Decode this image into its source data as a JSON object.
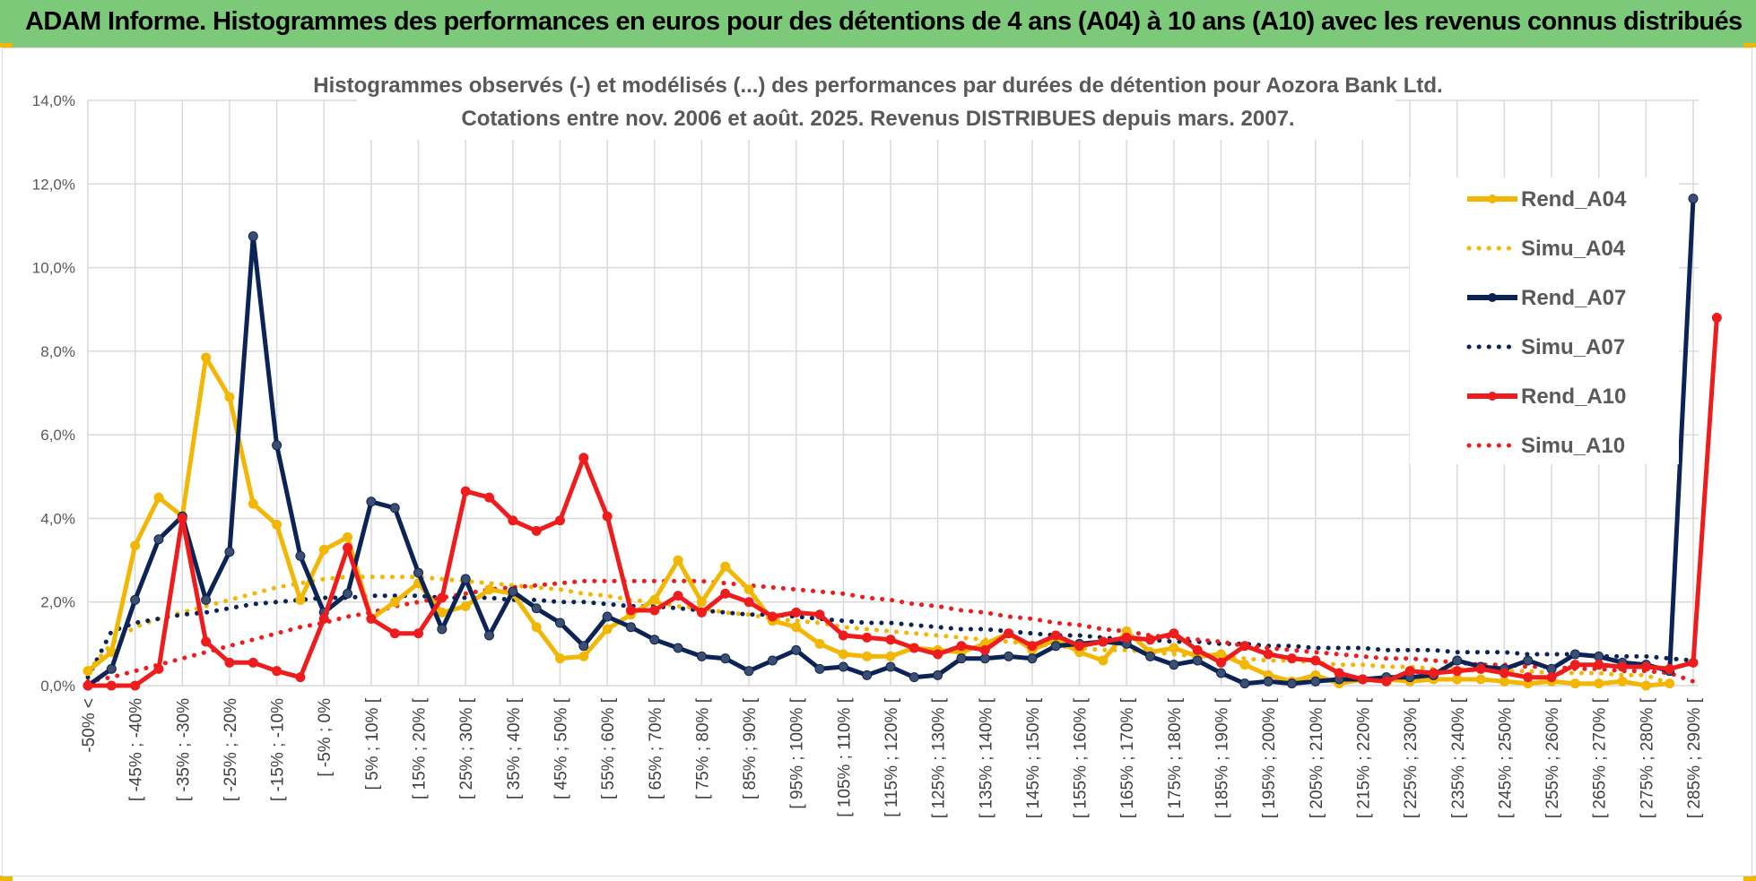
{
  "header": {
    "title": "ADAM Informe. Histogrammes des performances en euros pour des détentions de 4 ans (A04) à 10 ans (A10) avec les revenus connus distribués"
  },
  "colors": {
    "banner": "#7dc97a",
    "accent": "#f2b705"
  },
  "chart_data": {
    "type": "line",
    "title": "Histogrammes observés (-) et modélisés (...) des performances par durées de détention pour Aozora Bank Ltd.",
    "subtitle": "Cotations entre nov. 2006 et août. 2025. Revenus DISTRIBUES depuis mars. 2007.",
    "ylim": [
      0,
      14
    ],
    "yticks": [
      "0,0%",
      "2,0%",
      "4,0%",
      "6,0%",
      "8,0%",
      "10,0%",
      "12,0%",
      "14,0%"
    ],
    "grid": true,
    "legend_position": "right",
    "x_labels": [
      "-50% <",
      "[ -45% ; -40%",
      "[ -35% ; -30%",
      "[ -25% ; -20%",
      "[ -15% ; -10%",
      "[ -5% ; 0%",
      "[ 5% ; 10% [",
      "[ 15% ; 20% [",
      "[ 25% ; 30% [",
      "[ 35% ; 40% [",
      "[ 45% ; 50% [",
      "[ 55% ; 60% [",
      "[ 65% ; 70% [",
      "[ 75% ; 80% [",
      "[ 85% ; 90% [",
      "[ 95% ; 100% [",
      "[ 105% ; 110% [",
      "[ 115% ; 120% [",
      "[ 125% ; 130% [",
      "[ 135% ; 140% [",
      "[ 145% ; 150% [",
      "[ 155% ; 160% [",
      "[ 165% ; 170% [",
      "[ 175% ; 180% [",
      "[ 185% ; 190% [",
      "[ 195% ; 200% [",
      "[ 205% ; 210% [",
      "[ 215% ; 220% [",
      "[ 225% ; 230% [",
      "[ 235% ; 240% [",
      "[ 245% ; 250% [",
      "[ 255% ; 260% [",
      "[ 265% ; 270% [",
      "[ 275% ; 280% [",
      "[ 285% ; 290% ["
    ],
    "series": [
      {
        "name": "Rend_A04",
        "style": "solid",
        "color": "#f2b705",
        "values": [
          0.35,
          0.8,
          3.35,
          4.5,
          4.05,
          7.85,
          6.9,
          4.35,
          3.85,
          2.05,
          3.25,
          3.55,
          1.6,
          2.0,
          2.45,
          1.75,
          1.9,
          2.3,
          2.2,
          1.4,
          0.65,
          0.7,
          1.35,
          1.7,
          2.05,
          3.0,
          2.0,
          2.85,
          2.3,
          1.55,
          1.4,
          1.0,
          0.75,
          0.7,
          0.7,
          0.9,
          0.85,
          0.8,
          1.0,
          1.25,
          0.85,
          1.1,
          0.8,
          0.6,
          1.3,
          0.8,
          0.9,
          0.7,
          0.75,
          0.5,
          0.25,
          0.1,
          0.25,
          0.05,
          0.15,
          0.15,
          0.1,
          0.15,
          0.15,
          0.15,
          0.1,
          0.05,
          0.1,
          0.05,
          0.05,
          0.1,
          0.0,
          0.05
        ]
      },
      {
        "name": "Simu_A04",
        "style": "dotted",
        "color": "#f2b705",
        "values": [
          0.35,
          1.0,
          1.4,
          1.6,
          1.75,
          1.9,
          2.05,
          2.2,
          2.35,
          2.45,
          2.55,
          2.6,
          2.6,
          2.6,
          2.6,
          2.55,
          2.5,
          2.45,
          2.4,
          2.35,
          2.3,
          2.2,
          2.15,
          2.05,
          2.0,
          1.9,
          1.85,
          1.75,
          1.7,
          1.6,
          1.55,
          1.5,
          1.4,
          1.35,
          1.3,
          1.25,
          1.2,
          1.15,
          1.1,
          1.05,
          1.0,
          0.95,
          0.9,
          0.85,
          0.85,
          0.8,
          0.75,
          0.7,
          0.7,
          0.65,
          0.6,
          0.6,
          0.55,
          0.5,
          0.5,
          0.45,
          0.45,
          0.4,
          0.4,
          0.35,
          0.35,
          0.35,
          0.3,
          0.3,
          0.3,
          0.25,
          0.25,
          0.05
        ]
      },
      {
        "name": "Rend_A07",
        "style": "solid",
        "color": "#0c2356",
        "values": [
          0.0,
          0.4,
          2.05,
          3.5,
          4.05,
          2.05,
          3.2,
          10.75,
          5.75,
          3.1,
          1.75,
          2.2,
          4.4,
          4.25,
          2.7,
          1.35,
          2.55,
          1.2,
          2.25,
          1.85,
          1.5,
          0.95,
          1.65,
          1.4,
          1.1,
          0.9,
          0.7,
          0.65,
          0.35,
          0.6,
          0.85,
          0.4,
          0.45,
          0.25,
          0.45,
          0.2,
          0.25,
          0.65,
          0.65,
          0.7,
          0.65,
          0.95,
          1.0,
          1.05,
          1.0,
          0.7,
          0.5,
          0.6,
          0.3,
          0.05,
          0.1,
          0.05,
          0.1,
          0.15,
          0.15,
          0.2,
          0.2,
          0.25,
          0.6,
          0.45,
          0.4,
          0.6,
          0.4,
          0.75,
          0.7,
          0.55,
          0.5,
          0.35,
          11.65
        ]
      },
      {
        "name": "Simu_A07",
        "style": "dotted",
        "color": "#0c2356",
        "values": [
          0.2,
          1.3,
          1.5,
          1.6,
          1.7,
          1.75,
          1.85,
          1.95,
          2.0,
          2.05,
          2.1,
          2.1,
          2.15,
          2.15,
          2.15,
          2.1,
          2.1,
          2.1,
          2.05,
          2.05,
          2.0,
          2.0,
          1.95,
          1.9,
          1.9,
          1.85,
          1.8,
          1.75,
          1.7,
          1.7,
          1.65,
          1.6,
          1.55,
          1.5,
          1.5,
          1.45,
          1.4,
          1.35,
          1.35,
          1.3,
          1.25,
          1.2,
          1.2,
          1.15,
          1.1,
          1.1,
          1.05,
          1.05,
          1.0,
          1.0,
          0.95,
          0.95,
          0.9,
          0.9,
          0.9,
          0.85,
          0.85,
          0.85,
          0.8,
          0.8,
          0.8,
          0.75,
          0.75,
          0.75,
          0.7,
          0.7,
          0.7,
          0.65,
          0.6
        ]
      },
      {
        "name": "Rend_A10",
        "style": "solid",
        "color": "#ee1c1c",
        "values": [
          0.0,
          0.0,
          0.0,
          0.4,
          4.0,
          1.05,
          0.55,
          0.55,
          0.35,
          0.2,
          1.6,
          3.3,
          1.6,
          1.25,
          1.25,
          2.1,
          4.65,
          4.5,
          3.95,
          3.7,
          3.95,
          5.45,
          4.05,
          1.8,
          1.8,
          2.15,
          1.75,
          2.2,
          2.0,
          1.65,
          1.75,
          1.7,
          1.2,
          1.15,
          1.1,
          0.9,
          0.75,
          0.95,
          0.85,
          1.25,
          0.95,
          1.2,
          0.95,
          1.05,
          1.15,
          1.1,
          1.25,
          0.85,
          0.55,
          0.95,
          0.75,
          0.65,
          0.6,
          0.3,
          0.15,
          0.1,
          0.35,
          0.3,
          0.35,
          0.4,
          0.3,
          0.2,
          0.2,
          0.5,
          0.5,
          0.45,
          0.45,
          0.4,
          0.55,
          8.8
        ]
      },
      {
        "name": "Simu_A10",
        "style": "dotted",
        "color": "#ee1c1c",
        "values": [
          0.1,
          0.2,
          0.35,
          0.5,
          0.65,
          0.8,
          0.95,
          1.1,
          1.25,
          1.4,
          1.5,
          1.65,
          1.75,
          1.9,
          2.0,
          2.1,
          2.2,
          2.3,
          2.35,
          2.4,
          2.45,
          2.5,
          2.5,
          2.5,
          2.5,
          2.5,
          2.5,
          2.45,
          2.4,
          2.35,
          2.3,
          2.25,
          2.2,
          2.1,
          2.05,
          1.95,
          1.9,
          1.8,
          1.75,
          1.65,
          1.6,
          1.5,
          1.45,
          1.35,
          1.3,
          1.2,
          1.15,
          1.1,
          1.05,
          0.95,
          0.9,
          0.85,
          0.8,
          0.75,
          0.7,
          0.65,
          0.65,
          0.6,
          0.55,
          0.5,
          0.5,
          0.45,
          0.45,
          0.4,
          0.4,
          0.35,
          0.35,
          0.3,
          0.1
        ]
      }
    ]
  }
}
